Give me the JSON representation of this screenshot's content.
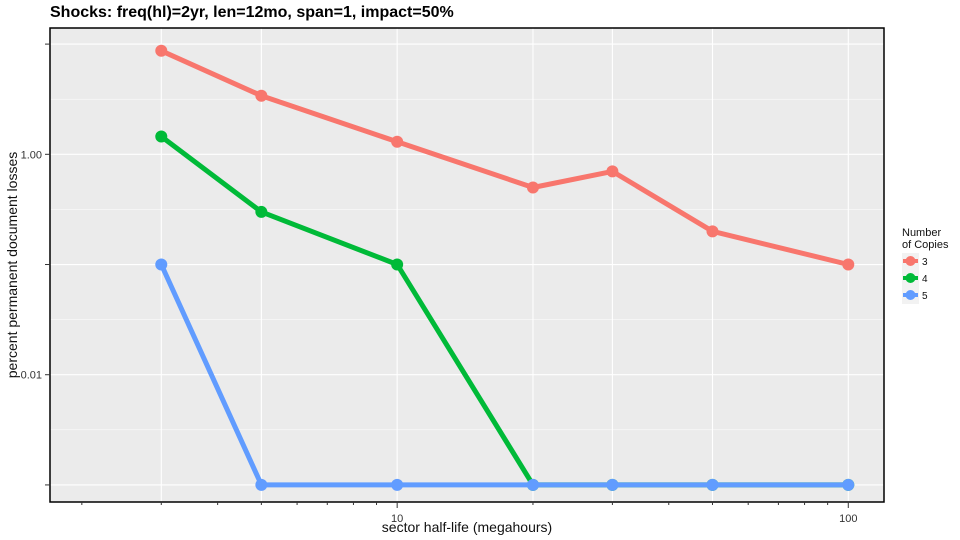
{
  "chart_data": {
    "type": "line",
    "title": "Shocks: freq(hl)=2yr, len=12mo, span=1, impact=50%",
    "xlabel": "sector half-life (megahours)",
    "ylabel": "percent permanent document losses",
    "x_scale": "log10",
    "y_scale": "log10",
    "xlim": [
      1.7,
      120
    ],
    "ylim": [
      0.0007,
      14
    ],
    "x_ticks": [
      {
        "value": 10,
        "label": "10"
      },
      {
        "value": 100,
        "label": "100"
      }
    ],
    "y_ticks": [
      {
        "value": 1,
        "label": "1.00"
      },
      {
        "value": 0.01,
        "label": "0.01"
      }
    ],
    "x": [
      3,
      5,
      10,
      20,
      30,
      50,
      100
    ],
    "legend": {
      "title_line1": "Number",
      "title_line2": "of Copies",
      "position": "right"
    },
    "grid": true,
    "background": "#ebebeb",
    "series": [
      {
        "name": "3",
        "color": "#f8766d",
        "values": [
          8.7,
          3.4,
          1.3,
          0.5,
          0.7,
          0.2,
          0.1
        ]
      },
      {
        "name": "4",
        "color": "#00ba38",
        "values": [
          1.45,
          0.3,
          0.1,
          0.001,
          0.001,
          0.001,
          0.001
        ]
      },
      {
        "name": "5",
        "color": "#619cff",
        "values": [
          0.1,
          0.001,
          0.001,
          0.001,
          0.001,
          0.001,
          0.001
        ]
      }
    ]
  }
}
